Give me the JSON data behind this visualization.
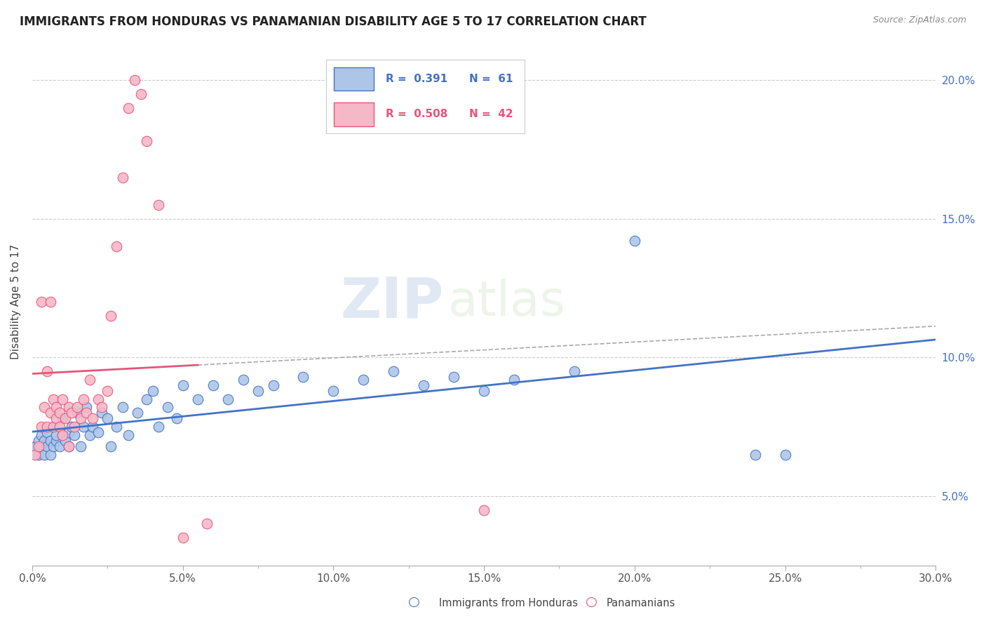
{
  "title": "IMMIGRANTS FROM HONDURAS VS PANAMANIAN DISABILITY AGE 5 TO 17 CORRELATION CHART",
  "source_text": "Source: ZipAtlas.com",
  "ylabel": "Disability Age 5 to 17",
  "xlim": [
    0.0,
    0.3
  ],
  "ylim": [
    0.025,
    0.215
  ],
  "xtick_labels": [
    "0.0%",
    "",
    "5.0%",
    "",
    "10.0%",
    "",
    "15.0%",
    "",
    "20.0%",
    "",
    "25.0%",
    "",
    "30.0%"
  ],
  "xtick_vals": [
    0.0,
    0.025,
    0.05,
    0.075,
    0.1,
    0.125,
    0.15,
    0.175,
    0.2,
    0.225,
    0.25,
    0.275,
    0.3
  ],
  "ytick_labels": [
    "5.0%",
    "10.0%",
    "15.0%",
    "20.0%"
  ],
  "ytick_vals": [
    0.05,
    0.1,
    0.15,
    0.2
  ],
  "color_honduras": "#adc6e8",
  "color_panama": "#f5b8c8",
  "color_line_honduras": "#4472c4",
  "color_line_panama": "#e8547a",
  "watermark_zip": "ZIP",
  "watermark_atlas": "atlas",
  "scatter_honduras": [
    [
      0.001,
      0.068
    ],
    [
      0.002,
      0.065
    ],
    [
      0.002,
      0.07
    ],
    [
      0.003,
      0.068
    ],
    [
      0.003,
      0.072
    ],
    [
      0.004,
      0.065
    ],
    [
      0.004,
      0.07
    ],
    [
      0.005,
      0.068
    ],
    [
      0.005,
      0.073
    ],
    [
      0.006,
      0.065
    ],
    [
      0.006,
      0.07
    ],
    [
      0.007,
      0.068
    ],
    [
      0.007,
      0.075
    ],
    [
      0.008,
      0.07
    ],
    [
      0.008,
      0.072
    ],
    [
      0.009,
      0.068
    ],
    [
      0.01,
      0.072
    ],
    [
      0.01,
      0.078
    ],
    [
      0.011,
      0.07
    ],
    [
      0.012,
      0.073
    ],
    [
      0.012,
      0.068
    ],
    [
      0.013,
      0.075
    ],
    [
      0.014,
      0.072
    ],
    [
      0.015,
      0.08
    ],
    [
      0.016,
      0.068
    ],
    [
      0.017,
      0.075
    ],
    [
      0.018,
      0.082
    ],
    [
      0.019,
      0.072
    ],
    [
      0.02,
      0.075
    ],
    [
      0.022,
      0.073
    ],
    [
      0.023,
      0.08
    ],
    [
      0.025,
      0.078
    ],
    [
      0.026,
      0.068
    ],
    [
      0.028,
      0.075
    ],
    [
      0.03,
      0.082
    ],
    [
      0.032,
      0.072
    ],
    [
      0.035,
      0.08
    ],
    [
      0.038,
      0.085
    ],
    [
      0.04,
      0.088
    ],
    [
      0.042,
      0.075
    ],
    [
      0.045,
      0.082
    ],
    [
      0.048,
      0.078
    ],
    [
      0.05,
      0.09
    ],
    [
      0.055,
      0.085
    ],
    [
      0.06,
      0.09
    ],
    [
      0.065,
      0.085
    ],
    [
      0.07,
      0.092
    ],
    [
      0.075,
      0.088
    ],
    [
      0.08,
      0.09
    ],
    [
      0.09,
      0.093
    ],
    [
      0.1,
      0.088
    ],
    [
      0.11,
      0.092
    ],
    [
      0.12,
      0.095
    ],
    [
      0.13,
      0.09
    ],
    [
      0.14,
      0.093
    ],
    [
      0.15,
      0.088
    ],
    [
      0.16,
      0.092
    ],
    [
      0.18,
      0.095
    ],
    [
      0.2,
      0.142
    ],
    [
      0.24,
      0.065
    ],
    [
      0.25,
      0.065
    ]
  ],
  "scatter_panama": [
    [
      0.001,
      0.065
    ],
    [
      0.002,
      0.068
    ],
    [
      0.003,
      0.075
    ],
    [
      0.003,
      0.12
    ],
    [
      0.004,
      0.082
    ],
    [
      0.005,
      0.075
    ],
    [
      0.005,
      0.095
    ],
    [
      0.006,
      0.08
    ],
    [
      0.006,
      0.12
    ],
    [
      0.007,
      0.075
    ],
    [
      0.007,
      0.085
    ],
    [
      0.008,
      0.078
    ],
    [
      0.008,
      0.082
    ],
    [
      0.009,
      0.075
    ],
    [
      0.009,
      0.08
    ],
    [
      0.01,
      0.085
    ],
    [
      0.01,
      0.072
    ],
    [
      0.011,
      0.078
    ],
    [
      0.012,
      0.082
    ],
    [
      0.012,
      0.068
    ],
    [
      0.013,
      0.08
    ],
    [
      0.014,
      0.075
    ],
    [
      0.015,
      0.082
    ],
    [
      0.016,
      0.078
    ],
    [
      0.017,
      0.085
    ],
    [
      0.018,
      0.08
    ],
    [
      0.019,
      0.092
    ],
    [
      0.02,
      0.078
    ],
    [
      0.022,
      0.085
    ],
    [
      0.023,
      0.082
    ],
    [
      0.025,
      0.088
    ],
    [
      0.026,
      0.115
    ],
    [
      0.028,
      0.14
    ],
    [
      0.03,
      0.165
    ],
    [
      0.032,
      0.19
    ],
    [
      0.034,
      0.2
    ],
    [
      0.036,
      0.195
    ],
    [
      0.038,
      0.178
    ],
    [
      0.042,
      0.155
    ],
    [
      0.05,
      0.035
    ],
    [
      0.058,
      0.04
    ],
    [
      0.15,
      0.045
    ]
  ],
  "line_dashed_start_x": 0.055,
  "line_dashed_end_x": 0.3
}
